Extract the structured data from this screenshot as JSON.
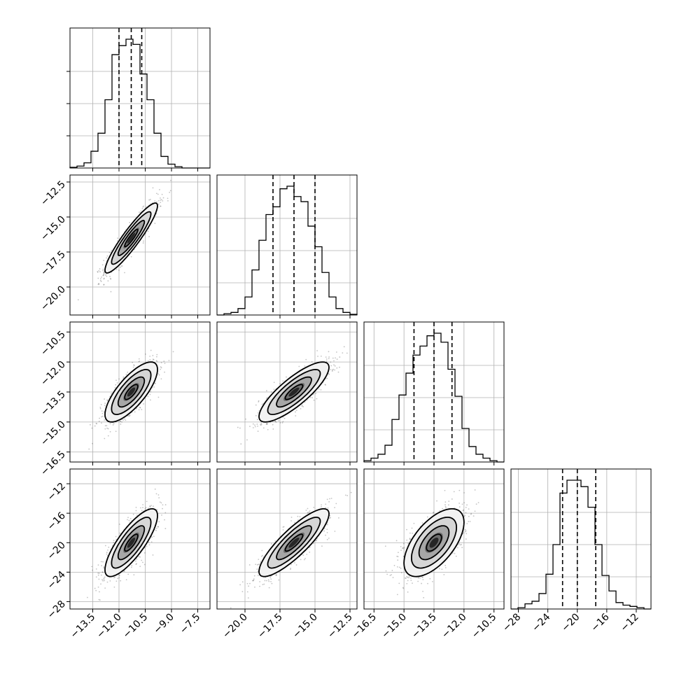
{
  "chart_data": {
    "type": "corner",
    "parameters": [
      {
        "index": 0,
        "range": [
          -14.8,
          -6.8
        ],
        "ticks": [
          -13.5,
          -12.0,
          -10.5,
          -9.0,
          -7.5
        ],
        "tick_labels": [
          "−13.5",
          "−12.0",
          "−10.5",
          "−9.0",
          "−7.5"
        ],
        "quantiles": [
          -12.0,
          -11.3,
          -10.7
        ],
        "hist_bin_edges": [
          -14.8,
          -14.4,
          -14.0,
          -13.6,
          -13.2,
          -12.8,
          -12.4,
          -12.0,
          -11.6,
          -11.2,
          -10.8,
          -10.4,
          -10.0,
          -9.6,
          -9.2,
          -8.8,
          -8.4,
          -8.0,
          -7.6,
          -7.2,
          -6.8
        ],
        "hist_counts": [
          0.005,
          0.015,
          0.04,
          0.13,
          0.27,
          0.53,
          0.88,
          0.95,
          1.0,
          0.96,
          0.73,
          0.53,
          0.27,
          0.09,
          0.03,
          0.01,
          0,
          0,
          0,
          0
        ]
      },
      {
        "index": 1,
        "range": [
          -22.0,
          -12.0
        ],
        "ticks": [
          -20.0,
          -17.5,
          -15.0,
          -12.5
        ],
        "tick_labels": [
          "−20.0",
          "−17.5",
          "−15.0",
          "−12.5"
        ],
        "quantiles": [
          -18.0,
          -16.5,
          -15.0
        ],
        "hist_bin_edges": [
          -22.0,
          -21.5,
          -21.0,
          -20.5,
          -20.0,
          -19.5,
          -19.0,
          -18.5,
          -18.0,
          -17.5,
          -17.0,
          -16.5,
          -16.0,
          -15.5,
          -15.0,
          -14.5,
          -14.0,
          -13.5,
          -13.0,
          -12.5,
          -12.0
        ],
        "hist_counts": [
          0,
          0.01,
          0.02,
          0.05,
          0.14,
          0.35,
          0.58,
          0.78,
          0.84,
          0.98,
          1.0,
          0.92,
          0.88,
          0.69,
          0.53,
          0.33,
          0.14,
          0.05,
          0.02,
          0.005
        ]
      },
      {
        "index": 2,
        "range": [
          -17.0,
          -10.0
        ],
        "ticks": [
          -16.5,
          -15.0,
          -13.5,
          -12.0,
          -10.5
        ],
        "tick_labels": [
          "−16.5",
          "−15.0",
          "−13.5",
          "−12.0",
          "−10.5"
        ],
        "quantiles": [
          -14.5,
          -13.5,
          -12.6
        ],
        "hist_bin_edges": [
          -17.0,
          -16.65,
          -16.3,
          -15.95,
          -15.6,
          -15.25,
          -14.9,
          -14.55,
          -14.2,
          -13.85,
          -13.5,
          -13.15,
          -12.8,
          -12.45,
          -12.1,
          -11.75,
          -11.4,
          -11.05,
          -10.7,
          -10.35,
          -10.0
        ],
        "hist_counts": [
          0.01,
          0.03,
          0.06,
          0.13,
          0.33,
          0.52,
          0.69,
          0.83,
          0.9,
          0.98,
          1.0,
          0.93,
          0.72,
          0.51,
          0.26,
          0.12,
          0.06,
          0.03,
          0.01,
          0
        ]
      },
      {
        "index": 3,
        "range": [
          -29.0,
          -10.0
        ],
        "ticks": [
          -28,
          -24,
          -20,
          -16,
          -12
        ],
        "tick_labels": [
          "−28",
          "−24",
          "−20",
          "−16",
          "−12"
        ],
        "quantiles": [
          -22.0,
          -20.0,
          -17.5
        ],
        "hist_bin_edges": [
          -29.0,
          -28.05,
          -27.1,
          -26.15,
          -25.2,
          -24.25,
          -23.3,
          -22.35,
          -21.4,
          -20.45,
          -19.5,
          -18.55,
          -17.6,
          -16.65,
          -15.7,
          -14.75,
          -13.8,
          -12.85,
          -11.9,
          -10.95,
          -10.0
        ],
        "hist_counts": [
          0,
          0.01,
          0.04,
          0.06,
          0.12,
          0.27,
          0.5,
          0.9,
          1.0,
          1.0,
          0.95,
          0.79,
          0.5,
          0.26,
          0.14,
          0.05,
          0.03,
          0.02,
          0.01,
          0
        ]
      }
    ],
    "pairs": [
      {
        "row": 1,
        "col": 0,
        "mean": [
          -11.3,
          -16.5
        ],
        "sd": [
          0.75,
          1.25
        ],
        "rho": 0.92
      },
      {
        "row": 2,
        "col": 0,
        "mean": [
          -11.3,
          -13.5
        ],
        "sd": [
          0.75,
          0.75
        ],
        "rho": 0.75
      },
      {
        "row": 2,
        "col": 1,
        "mean": [
          -16.5,
          -13.5
        ],
        "sd": [
          1.25,
          0.75
        ],
        "rho": 0.82
      },
      {
        "row": 3,
        "col": 0,
        "mean": [
          -11.3,
          -20.0
        ],
        "sd": [
          0.75,
          2.3
        ],
        "rho": 0.8
      },
      {
        "row": 3,
        "col": 1,
        "mean": [
          -16.5,
          -20.0
        ],
        "sd": [
          1.25,
          2.3
        ],
        "rho": 0.85
      },
      {
        "row": 3,
        "col": 2,
        "mean": [
          -13.5,
          -20.0
        ],
        "sd": [
          0.75,
          2.3
        ],
        "rho": 0.6
      }
    ],
    "contour_levels_sigma": [
      0.5,
      1.0,
      1.5,
      2.0
    ],
    "grid": true
  }
}
